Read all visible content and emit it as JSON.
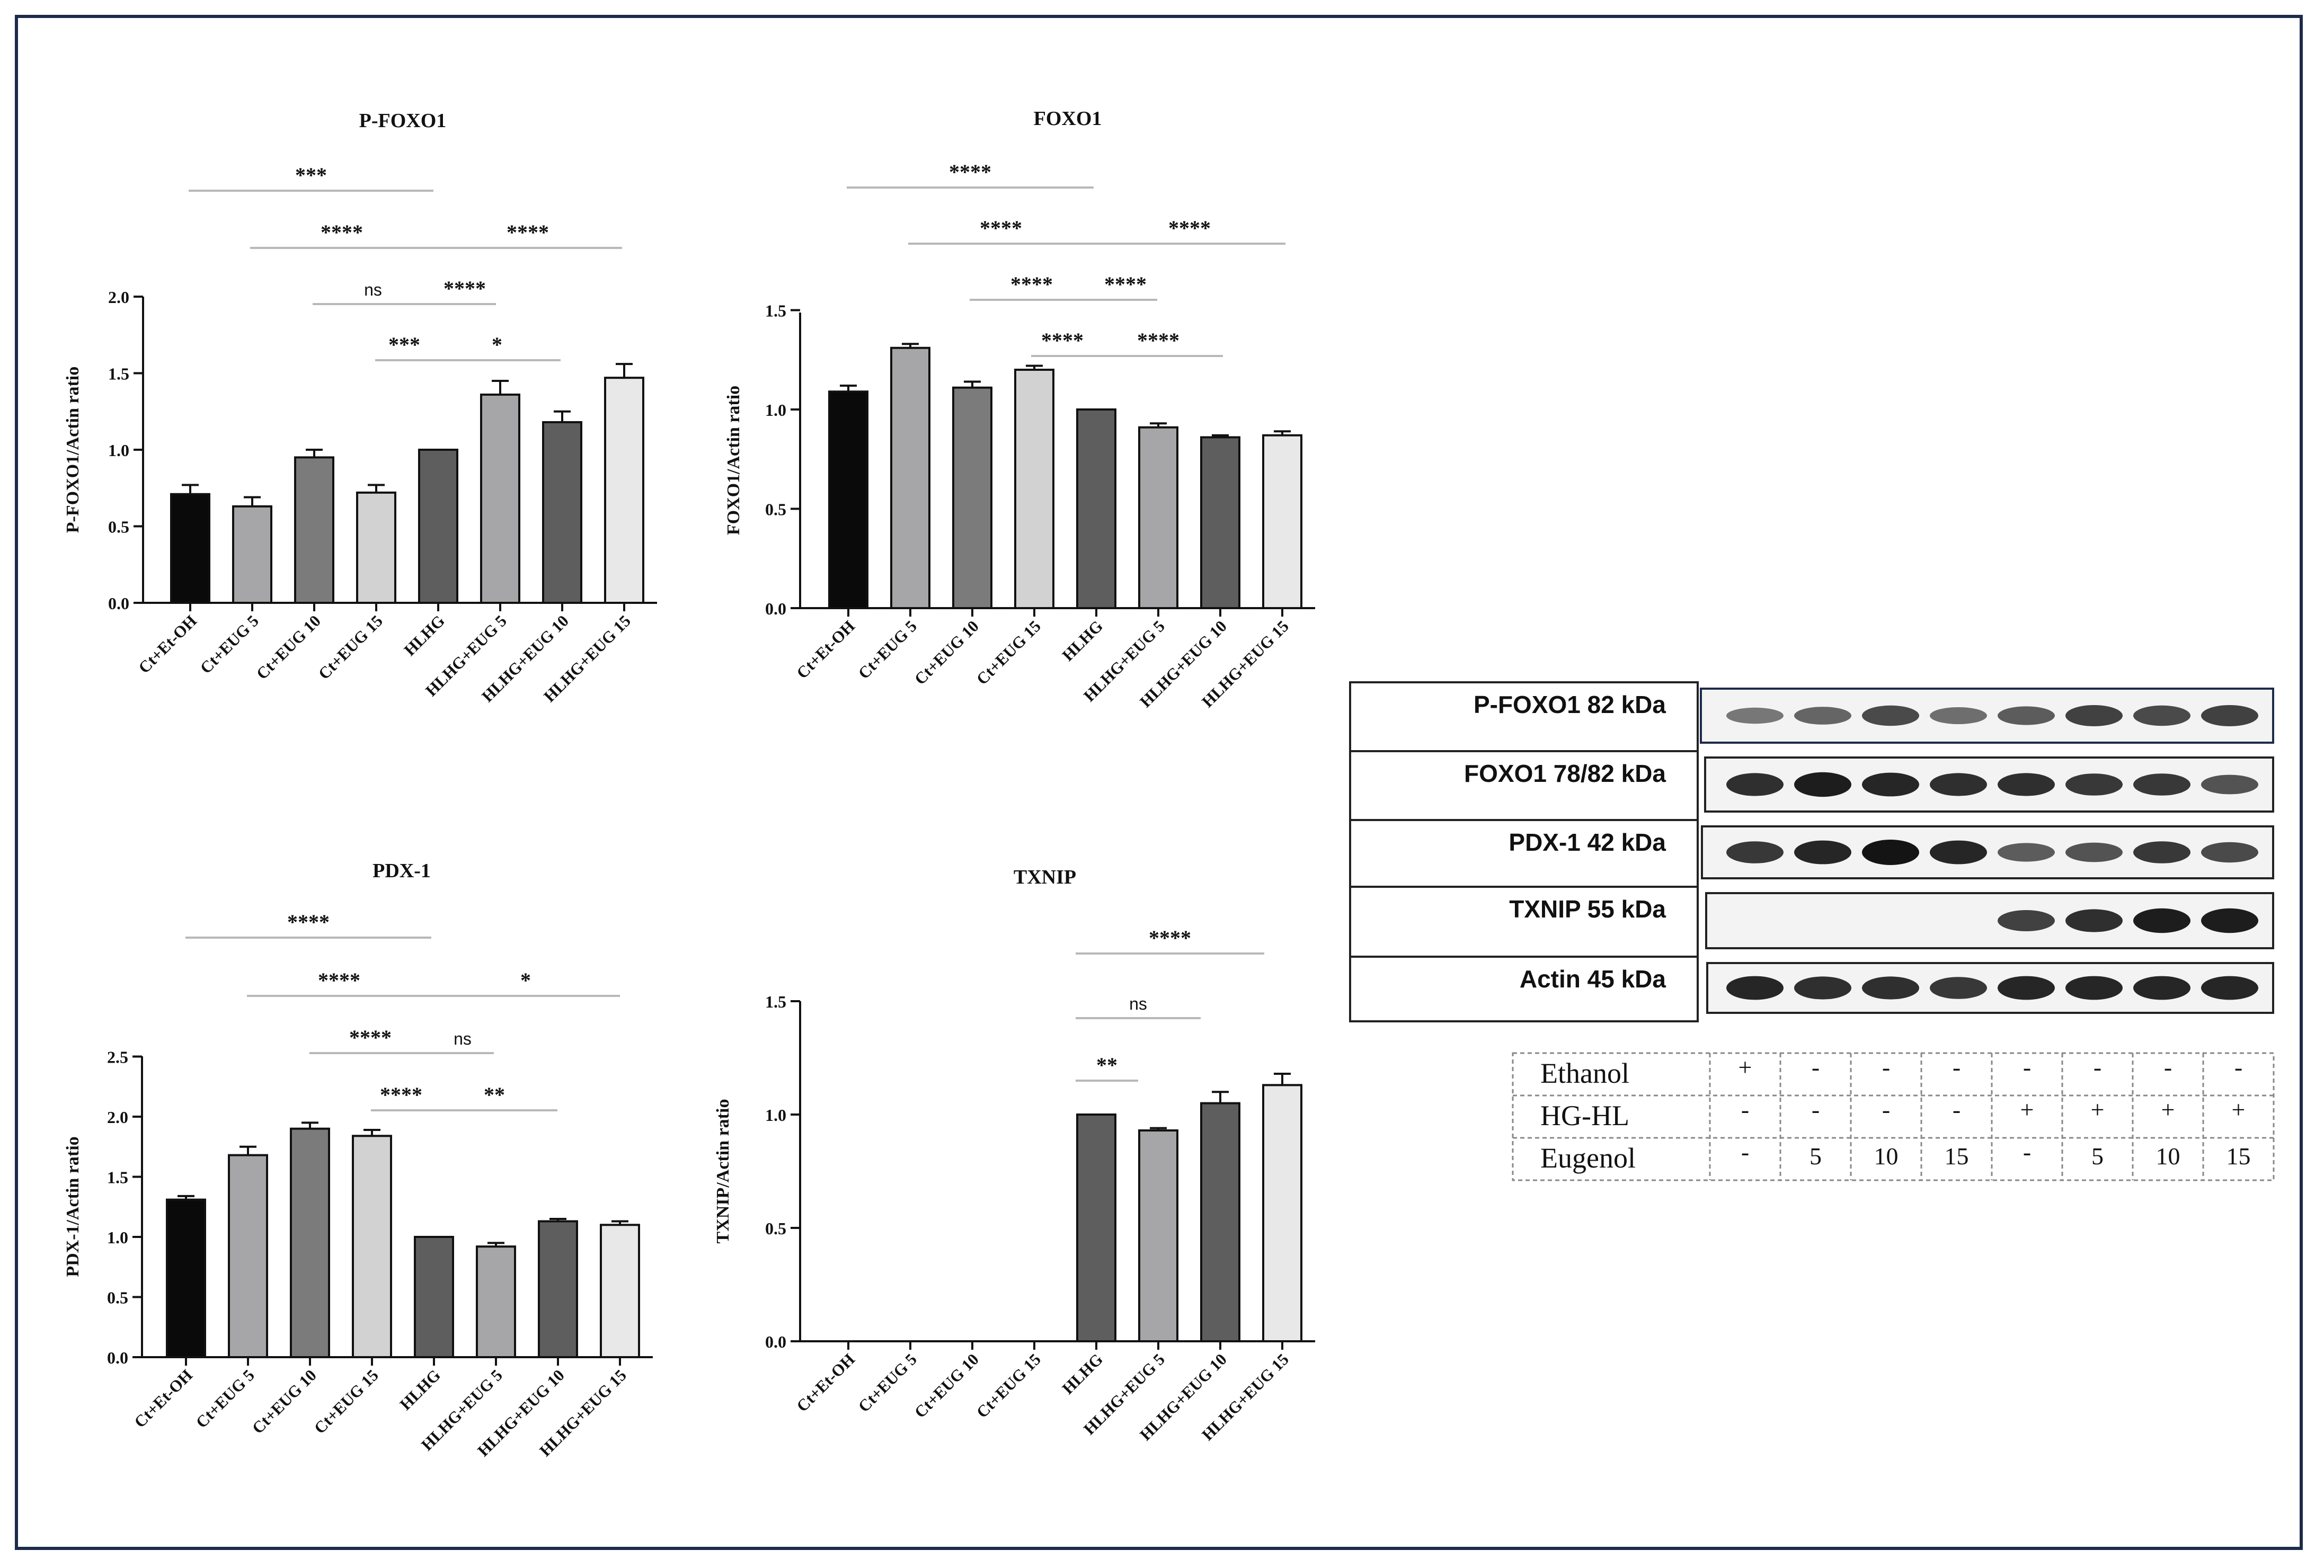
{
  "chart_data": [
    {
      "type": "bar",
      "title": "P-FOXO1",
      "ylabel": "P-FOXO1/Actin ratio",
      "xlabel": "",
      "ylim": [
        0,
        2.0
      ],
      "yticks": [
        "0.0",
        "0.5",
        "1.0",
        "1.5",
        "2.0"
      ],
      "categories": [
        "Ct+Et-OH",
        "Ct+EUG 5",
        "Ct+EUG 10",
        "Ct+EUG 15",
        "HLHG",
        "HLHG+EUG 5",
        "HLHG+EUG 10",
        "HLHG+EUG 15"
      ],
      "values": [
        0.71,
        0.63,
        0.95,
        0.72,
        1.0,
        1.36,
        1.18,
        1.47
      ],
      "errors": [
        0.06,
        0.06,
        0.05,
        0.05,
        0.0,
        0.09,
        0.07,
        0.09
      ],
      "colors": [
        "#0a0a0a",
        "#a6a6a8",
        "#7b7b7b",
        "#d2d2d2",
        "#5e5e5e",
        "#a6a6a8",
        "#5e5e5e",
        "#e8e8e8"
      ],
      "comparisons": [
        {
          "from": 0,
          "to": 4,
          "label": "***"
        },
        {
          "from": 1,
          "to": 4,
          "label": "****"
        },
        {
          "from": 4,
          "to": 7,
          "label": "****"
        },
        {
          "from": 2,
          "to": 4,
          "label": "ns"
        },
        {
          "from": 4,
          "to": 5,
          "label": "****"
        },
        {
          "from": 3,
          "to": 4,
          "label": "***"
        },
        {
          "from": 4,
          "to": 6,
          "label": "*"
        }
      ]
    },
    {
      "type": "bar",
      "title": "FOXO1",
      "ylabel": "FOXO1/Actin ratio",
      "xlabel": "",
      "ylim": [
        0,
        1.5
      ],
      "yticks": [
        "0.0",
        "0.5",
        "1.0",
        "1.5"
      ],
      "categories": [
        "Ct+Et-OH",
        "Ct+EUG 5",
        "Ct+EUG 10",
        "Ct+EUG 15",
        "HLHG",
        "HLHG+EUG 5",
        "HLHG+EUG 10",
        "HLHG+EUG 15"
      ],
      "values": [
        1.09,
        1.31,
        1.11,
        1.2,
        1.0,
        0.91,
        0.86,
        0.87
      ],
      "errors": [
        0.03,
        0.02,
        0.03,
        0.02,
        0.0,
        0.02,
        0.01,
        0.02
      ],
      "colors": [
        "#0a0a0a",
        "#a6a6a8",
        "#7b7b7b",
        "#d2d2d2",
        "#5e5e5e",
        "#a6a6a8",
        "#5e5e5e",
        "#e8e8e8"
      ],
      "comparisons": [
        {
          "from": 0,
          "to": 4,
          "label": "****"
        },
        {
          "from": 1,
          "to": 4,
          "label": "****"
        },
        {
          "from": 4,
          "to": 7,
          "label": "****"
        },
        {
          "from": 2,
          "to": 4,
          "label": "****"
        },
        {
          "from": 4,
          "to": 5,
          "label": "****"
        },
        {
          "from": 3,
          "to": 4,
          "label": "****"
        },
        {
          "from": 4,
          "to": 6,
          "label": "****"
        }
      ]
    },
    {
      "type": "bar",
      "title": "PDX-1",
      "ylabel": "PDX-1/Actin ratio",
      "xlabel": "",
      "ylim": [
        0,
        2.5
      ],
      "yticks": [
        "0.0",
        "0.5",
        "1.0",
        "1.5",
        "2.0",
        "2.5"
      ],
      "categories": [
        "Ct+Et-OH",
        "Ct+EUG 5",
        "Ct+EUG 10",
        "Ct+EUG 15",
        "HLHG",
        "HLHG+EUG 5",
        "HLHG+EUG 10",
        "HLHG+EUG 15"
      ],
      "values": [
        1.31,
        1.68,
        1.9,
        1.84,
        1.0,
        0.92,
        1.13,
        1.1
      ],
      "errors": [
        0.03,
        0.07,
        0.05,
        0.05,
        0.0,
        0.03,
        0.02,
        0.03
      ],
      "colors": [
        "#0a0a0a",
        "#a6a6a8",
        "#7b7b7b",
        "#d2d2d2",
        "#5e5e5e",
        "#a6a6a8",
        "#5e5e5e",
        "#e8e8e8"
      ],
      "comparisons": [
        {
          "from": 0,
          "to": 4,
          "label": "****"
        },
        {
          "from": 1,
          "to": 4,
          "label": "****"
        },
        {
          "from": 4,
          "to": 7,
          "label": "*"
        },
        {
          "from": 2,
          "to": 4,
          "label": "****"
        },
        {
          "from": 4,
          "to": 5,
          "label": "ns"
        },
        {
          "from": 3,
          "to": 4,
          "label": "****"
        },
        {
          "from": 4,
          "to": 6,
          "label": "**"
        }
      ]
    },
    {
      "type": "bar",
      "title": "TXNIP",
      "ylabel": "TXNIP/Actin ratio",
      "xlabel": "",
      "ylim": [
        0,
        1.5
      ],
      "yticks": [
        "0.0",
        "0.5",
        "1.0",
        "1.5"
      ],
      "categories": [
        "Ct+Et-OH",
        "Ct+EUG 5",
        "Ct+EUG 10",
        "Ct+EUG 15",
        "HLHG",
        "HLHG+EUG 5",
        "HLHG+EUG 10",
        "HLHG+EUG 15"
      ],
      "values": [
        0,
        0,
        0,
        0,
        1.0,
        0.93,
        1.05,
        1.13
      ],
      "errors": [
        0,
        0,
        0,
        0,
        0.0,
        0.01,
        0.05,
        0.05
      ],
      "colors": [
        "#0a0a0a",
        "#a6a6a8",
        "#7b7b7b",
        "#d2d2d2",
        "#5e5e5e",
        "#a6a6a8",
        "#5e5e5e",
        "#e8e8e8"
      ],
      "comparisons": [
        {
          "from": 4,
          "to": 7,
          "label": "****"
        },
        {
          "from": 4,
          "to": 6,
          "label": "ns"
        },
        {
          "from": 4,
          "to": 5,
          "label": "**"
        }
      ]
    }
  ],
  "western_blot": {
    "bands": [
      {
        "label": "P-FOXO1 82 kDa",
        "intensities": [
          0.45,
          0.55,
          0.7,
          0.5,
          0.6,
          0.75,
          0.7,
          0.75
        ]
      },
      {
        "label": "FOXO1 78/82 kDa",
        "intensities": [
          0.85,
          0.95,
          0.9,
          0.85,
          0.85,
          0.8,
          0.8,
          0.65
        ]
      },
      {
        "label": "PDX-1 42 kDa",
        "intensities": [
          0.8,
          0.9,
          1.0,
          0.9,
          0.6,
          0.65,
          0.8,
          0.7
        ]
      },
      {
        "label": "TXNIP 55 kDa",
        "intensities": [
          0.0,
          0.0,
          0.0,
          0.0,
          0.75,
          0.85,
          0.95,
          0.95
        ]
      },
      {
        "label": "Actin 45 kDa",
        "intensities": [
          0.9,
          0.85,
          0.85,
          0.8,
          0.9,
          0.9,
          0.9,
          0.9
        ]
      }
    ],
    "table": {
      "rows": [
        {
          "label": "Ethanol",
          "cells": [
            "+",
            "-",
            "-",
            "-",
            "-",
            "-",
            "-",
            "-"
          ]
        },
        {
          "label": "HG-HL",
          "cells": [
            "-",
            "-",
            "-",
            "-",
            "+",
            "+",
            "+",
            "+"
          ]
        },
        {
          "label": "Eugenol",
          "cells": [
            "-",
            "5",
            "10",
            "15",
            "-",
            "5",
            "10",
            "15"
          ]
        }
      ]
    }
  }
}
